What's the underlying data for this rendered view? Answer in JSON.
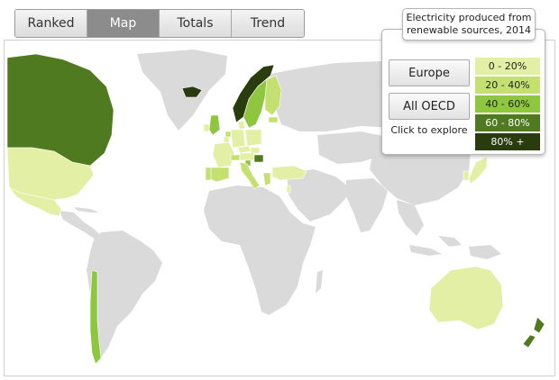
{
  "tabs": [
    {
      "label": "Ranked",
      "active": false
    },
    {
      "label": "Map",
      "active": true
    },
    {
      "label": "Totals",
      "active": false
    },
    {
      "label": "Trend",
      "active": false
    }
  ],
  "panel": {
    "title": "Electricity produced from renewable sources, 2014",
    "buttons": [
      "Europe",
      "All OECD"
    ],
    "hint": "Click to explore"
  },
  "legend": [
    {
      "label": "0 - 20%",
      "color": "#e3efa4",
      "text_color": "#222222"
    },
    {
      "label": "20 - 40%",
      "color": "#c3e071",
      "text_color": "#222222"
    },
    {
      "label": "40 - 60%",
      "color": "#8ec63f",
      "text_color": "#222222"
    },
    {
      "label": "60 - 80%",
      "color": "#4f7a1f",
      "text_color": "#ffffff"
    },
    {
      "label": "80% +",
      "color": "#2a3c0d",
      "text_color": "#ffffff"
    }
  ],
  "map": {
    "land_color": "#dadada",
    "countries": [
      {
        "name": "Canada",
        "band": 3
      },
      {
        "name": "United States",
        "band": 0
      },
      {
        "name": "Mexico",
        "band": 0
      },
      {
        "name": "Chile",
        "band": 2
      },
      {
        "name": "Iceland",
        "band": 4
      },
      {
        "name": "Norway",
        "band": 4
      },
      {
        "name": "Sweden",
        "band": 2
      },
      {
        "name": "Finland",
        "band": 1
      },
      {
        "name": "Denmark",
        "band": 1
      },
      {
        "name": "United Kingdom",
        "band": 0
      },
      {
        "name": "Ireland",
        "band": 0
      },
      {
        "name": "Portugal",
        "band": 2
      },
      {
        "name": "Spain",
        "band": 1
      },
      {
        "name": "France",
        "band": 0
      },
      {
        "name": "Belgium",
        "band": 0
      },
      {
        "name": "Netherlands",
        "band": 0
      },
      {
        "name": "Germany",
        "band": 0
      },
      {
        "name": "Poland",
        "band": 0
      },
      {
        "name": "Czech Republic",
        "band": 0
      },
      {
        "name": "Slovakia",
        "band": 1
      },
      {
        "name": "Hungary",
        "band": 0
      },
      {
        "name": "Austria",
        "band": 3
      },
      {
        "name": "Switzerland",
        "band": 2
      },
      {
        "name": "Slovenia",
        "band": 1
      },
      {
        "name": "Italy",
        "band": 1
      },
      {
        "name": "Greece",
        "band": 1
      },
      {
        "name": "Turkey",
        "band": 1
      },
      {
        "name": "Estonia",
        "band": 0
      },
      {
        "name": "Israel",
        "band": 0
      },
      {
        "name": "Japan",
        "band": 0
      },
      {
        "name": "South Korea",
        "band": 0
      },
      {
        "name": "Australia",
        "band": 0
      },
      {
        "name": "New Zealand",
        "band": 3
      }
    ]
  }
}
